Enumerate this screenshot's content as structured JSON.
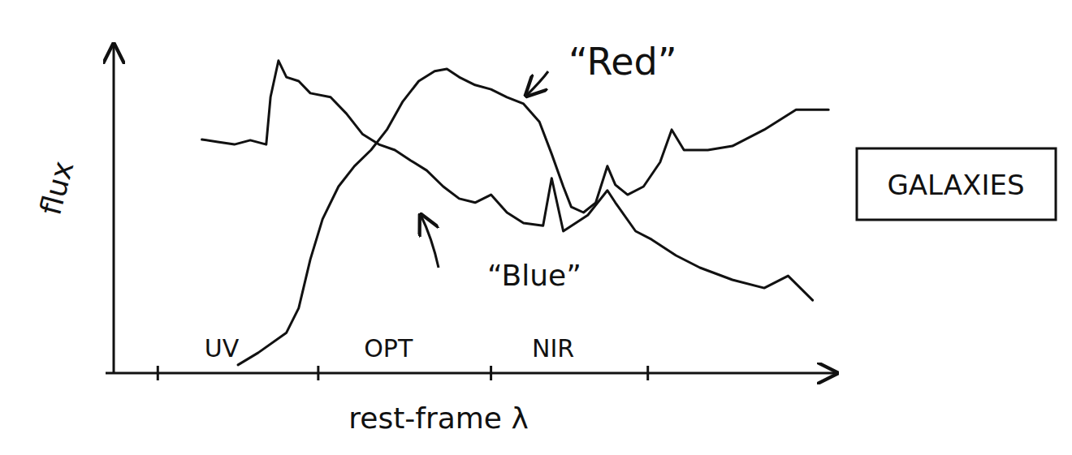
{
  "chart_data": {
    "type": "line",
    "title": "GALAXIES",
    "x_label": "rest-frame λ",
    "y_label": "flux",
    "xlim": [
      0,
      100
    ],
    "ylim": [
      0,
      100
    ],
    "xticks": [
      6.1,
      28.3,
      52.2,
      73.9
    ],
    "tick_labels": false,
    "grid": false,
    "annotations": [
      "UV",
      "OPT",
      "NIR"
    ],
    "series": [
      {
        "name": "“Red”",
        "color": "#111111",
        "x": [
          17.2,
          20.0,
          23.9,
          25.6,
          27.2,
          28.9,
          31.1,
          33.3,
          35.6,
          37.8,
          40.0,
          42.2,
          44.4,
          46.1,
          47.8,
          50.0,
          52.2,
          54.4,
          56.7,
          58.9,
          60.6,
          62.2,
          63.3,
          65.0,
          66.7,
          68.3,
          69.4,
          71.1,
          73.3,
          75.6,
          77.2,
          78.9,
          82.2,
          85.6,
          90.0,
          94.4,
          98.9
        ],
        "values": [
          2.5,
          6.2,
          12.3,
          19.8,
          34.6,
          46.9,
          56.8,
          63.0,
          67.9,
          74.1,
          82.7,
          88.9,
          91.9,
          92.6,
          90.1,
          87.7,
          86.4,
          84.0,
          82.0,
          76.5,
          66.7,
          56.8,
          50.6,
          48.9,
          51.9,
          63.0,
          57.3,
          54.3,
          56.8,
          64.2,
          74.1,
          67.9,
          67.9,
          69.1,
          74.1,
          80.2,
          80.2
        ]
      },
      {
        "name": "“Blue”",
        "color": "#111111",
        "x": [
          12.2,
          14.4,
          16.7,
          18.9,
          21.1,
          21.7,
          22.8,
          23.9,
          25.6,
          27.2,
          30.0,
          32.2,
          34.4,
          36.7,
          38.9,
          41.1,
          43.3,
          45.6,
          47.8,
          50.0,
          52.2,
          54.4,
          56.7,
          59.4,
          60.6,
          62.2,
          65.6,
          68.3,
          69.4,
          72.2,
          74.4,
          77.8,
          81.1,
          85.6,
          90.0,
          93.3,
          96.7
        ],
        "values": [
          71.1,
          70.4,
          69.6,
          70.9,
          69.6,
          84.0,
          95.1,
          90.1,
          88.9,
          85.2,
          84.0,
          79.0,
          72.8,
          69.6,
          67.9,
          64.7,
          61.7,
          56.8,
          53.1,
          51.9,
          54.3,
          48.9,
          45.7,
          44.9,
          59.3,
          43.2,
          48.1,
          55.6,
          51.9,
          43.2,
          40.7,
          35.8,
          32.1,
          28.4,
          25.9,
          29.6,
          22.2
        ]
      }
    ]
  }
}
